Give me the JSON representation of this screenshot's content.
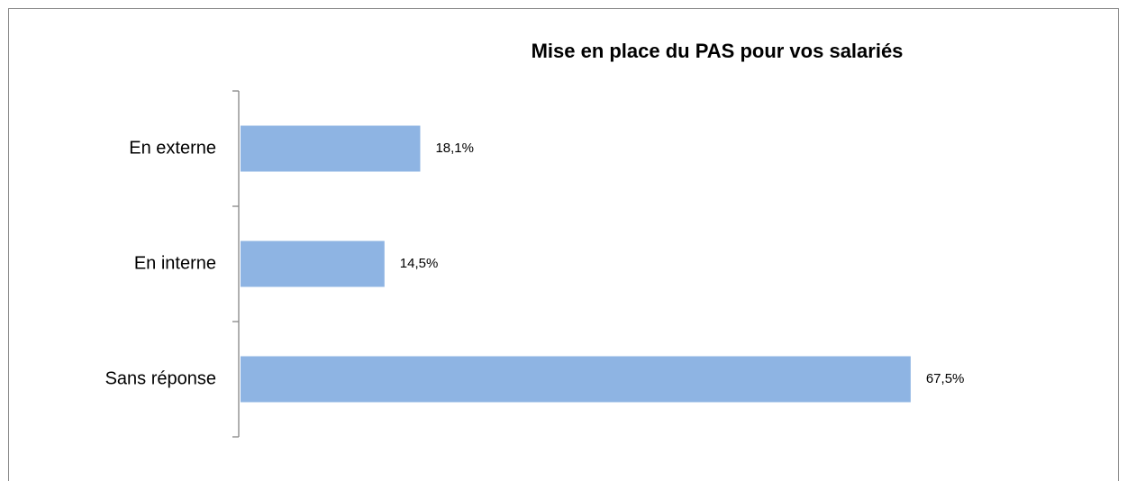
{
  "chart_data": {
    "type": "hbar",
    "title": "Mise en place du PAS pour vos salariés",
    "categories": [
      "En externe",
      "En interne",
      "Sans réponse"
    ],
    "values": [
      18.1,
      14.5,
      67.5
    ],
    "value_labels": [
      "18,1%",
      "14,5%",
      "67,5%"
    ],
    "color": "#8eb4e3"
  }
}
